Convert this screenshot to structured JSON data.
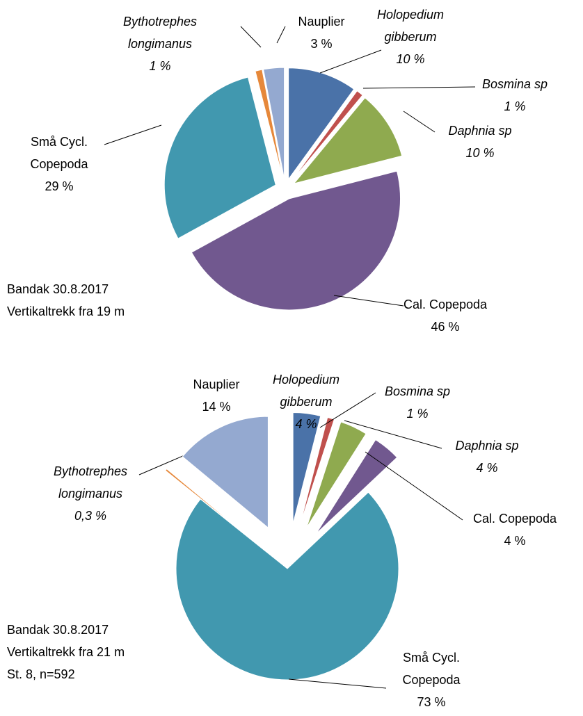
{
  "chart_data": [
    {
      "type": "pie",
      "categories": [
        "Holopedium gibberum",
        "Bosmina sp",
        "Daphnia sp",
        "Cal. Copepoda",
        "Små Cycl. Copepoda",
        "Bythotrephes longimanus",
        "Nauplier"
      ],
      "values": [
        10,
        1,
        10,
        46,
        29,
        1,
        3
      ],
      "value_labels": [
        "10 %",
        "1 %",
        "10 %",
        "46 %",
        "29 %",
        "1 %",
        "3 %"
      ],
      "colors": [
        "#4a72a8",
        "#c0504d",
        "#8faa4f",
        "#71588f",
        "#4198af",
        "#e6883a",
        "#94a9d0"
      ],
      "italic": [
        true,
        true,
        true,
        false,
        false,
        true,
        false
      ],
      "annotations": [
        "Bandak 30.8.2017",
        "Vertikaltrekk fra 19 m"
      ]
    },
    {
      "type": "pie",
      "categories": [
        "Holopedium gibberum",
        "Bosmina sp",
        "Daphnia sp",
        "Cal. Copepoda",
        "Små Cycl. Copepoda",
        "Bythotrephes longimanus",
        "Nauplier"
      ],
      "values": [
        4,
        1,
        4,
        4,
        73,
        0.3,
        14
      ],
      "value_labels": [
        "4 %",
        "1 %",
        "4 %",
        "4 %",
        "73 %",
        "0,3 %",
        "14 %"
      ],
      "colors": [
        "#4a72a8",
        "#c0504d",
        "#8faa4f",
        "#71588f",
        "#4198af",
        "#e6883a",
        "#94a9d0"
      ],
      "italic": [
        true,
        true,
        true,
        false,
        false,
        true,
        false
      ],
      "annotations": [
        "Bandak 30.8.2017",
        "Vertikaltrekk fra 21 m",
        "St. 8, n=592"
      ]
    }
  ]
}
